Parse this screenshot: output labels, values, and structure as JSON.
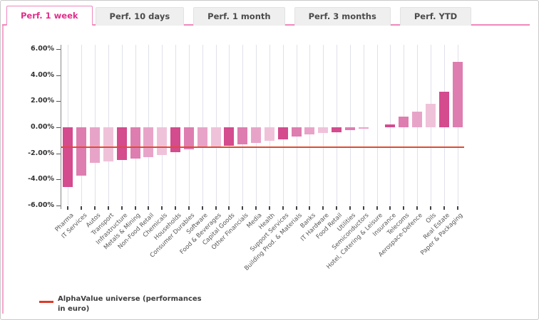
{
  "tabs": [
    {
      "label": "Perf. 1 week",
      "active": true
    },
    {
      "label": "Perf. 10 days",
      "active": false
    },
    {
      "label": "Perf. 1 month",
      "active": false
    },
    {
      "label": "Perf. 3 months",
      "active": false
    },
    {
      "label": "Perf. YTD",
      "active": false
    }
  ],
  "legend": {
    "line1": "AlphaValue universe (performances",
    "line2": "in euro)",
    "swatch_color": "#dd3a28"
  },
  "chart_data": {
    "type": "bar",
    "title": "",
    "xlabel": "",
    "ylabel": "",
    "ylim": [
      -6,
      6
    ],
    "grid": "vertical",
    "legend_position": "bottom-left",
    "y_ticks": [
      {
        "value": 6,
        "label": "6.00%"
      },
      {
        "value": 4,
        "label": "4.00%"
      },
      {
        "value": 2,
        "label": "2.00%"
      },
      {
        "value": 0,
        "label": "0.00%"
      },
      {
        "value": -2,
        "label": "-2.00%"
      },
      {
        "value": -4,
        "label": "-4.00%"
      },
      {
        "value": -6,
        "label": "-6.00%"
      }
    ],
    "categories": [
      "Pharma",
      "IT Services",
      "Autos",
      "Transport",
      "Infrastructure",
      "Metals & Mining",
      "Non-Food Retail",
      "Chemicals",
      "Households",
      "Consumer Durables",
      "Software",
      "Food & Beverages",
      "Capital Goods",
      "Other Financials",
      "Media",
      "Health",
      "Support Services",
      "Building Prod. & Materials",
      "Banks",
      "IT Hardware",
      "Food Retail",
      "Utilities",
      "Semiconductors",
      "Hotel, Catering & Leisure",
      "Insurance",
      "Telecoms",
      "Aerospace-Defence",
      "Oils",
      "Real Estate",
      "Paper & Packaging"
    ],
    "values": [
      -4.6,
      -3.7,
      -2.7,
      -2.6,
      -2.5,
      -2.4,
      -2.3,
      -2.1,
      -1.9,
      -1.7,
      -1.6,
      -1.5,
      -1.4,
      -1.3,
      -1.2,
      -1.05,
      -0.95,
      -0.7,
      -0.55,
      -0.45,
      -0.4,
      -0.2,
      -0.1,
      0,
      0.2,
      0.8,
      1.2,
      1.8,
      2.75,
      5.0
    ],
    "bar_color_cycle": [
      "#d44b8e",
      "#de7db0",
      "#e8a4c8",
      "#f0c2da"
    ],
    "reference_line": {
      "value": -1.5,
      "color": "#e14a32",
      "label": "AlphaValue universe (performances in euro)"
    }
  }
}
